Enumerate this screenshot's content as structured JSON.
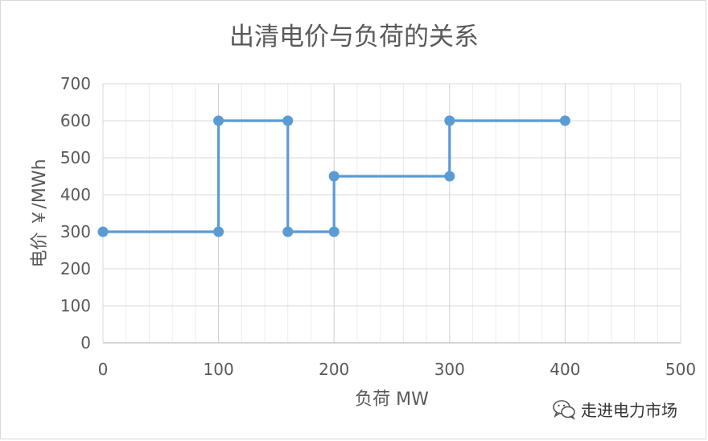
{
  "chart_data": {
    "type": "line",
    "title": "出清电价与负荷的关系",
    "xlabel": "负荷 MW",
    "ylabel": "电价 ￥/MWh",
    "xlim": [
      0,
      500
    ],
    "ylim": [
      0,
      700
    ],
    "x_ticks": [
      0,
      100,
      200,
      300,
      400,
      500
    ],
    "y_ticks": [
      0,
      100,
      200,
      300,
      400,
      500,
      600,
      700
    ],
    "grid": true,
    "series": [
      {
        "color": "#5b9bd5",
        "points": [
          {
            "x": 0,
            "y": 300
          },
          {
            "x": 100,
            "y": 300
          },
          {
            "x": 100,
            "y": 600
          },
          {
            "x": 160,
            "y": 600
          },
          {
            "x": 160,
            "y": 300
          },
          {
            "x": 200,
            "y": 300
          },
          {
            "x": 200,
            "y": 450
          },
          {
            "x": 300,
            "y": 450
          },
          {
            "x": 300,
            "y": 600
          },
          {
            "x": 400,
            "y": 600
          }
        ]
      }
    ]
  },
  "watermark": {
    "icon": "wechat-icon",
    "text": "走进电力市场"
  }
}
